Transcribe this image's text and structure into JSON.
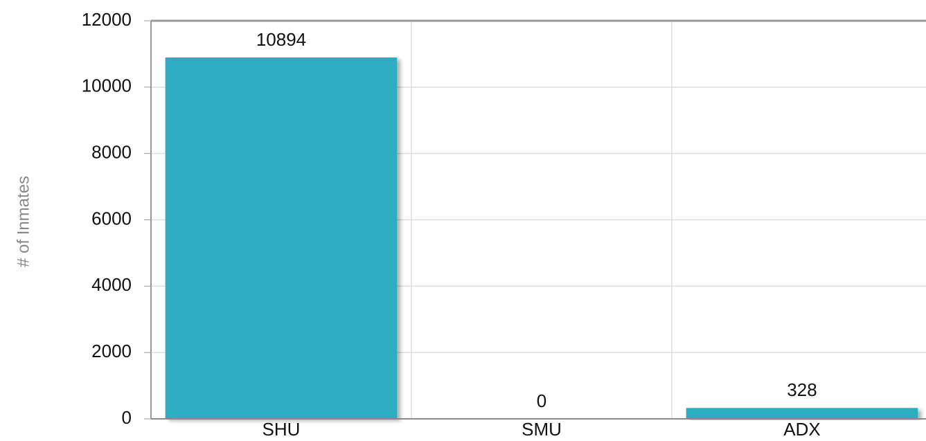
{
  "chart_data": {
    "type": "bar",
    "y_label": "# of Inmates",
    "categories": [
      "SHU",
      "SMU",
      "ADX"
    ],
    "values": [
      10894,
      0,
      328
    ],
    "color": "#2eadc2",
    "ylim": [
      0,
      12000
    ],
    "yticks": [
      0,
      2000,
      4000,
      6000,
      8000,
      10000,
      12000
    ],
    "grid": true
  }
}
